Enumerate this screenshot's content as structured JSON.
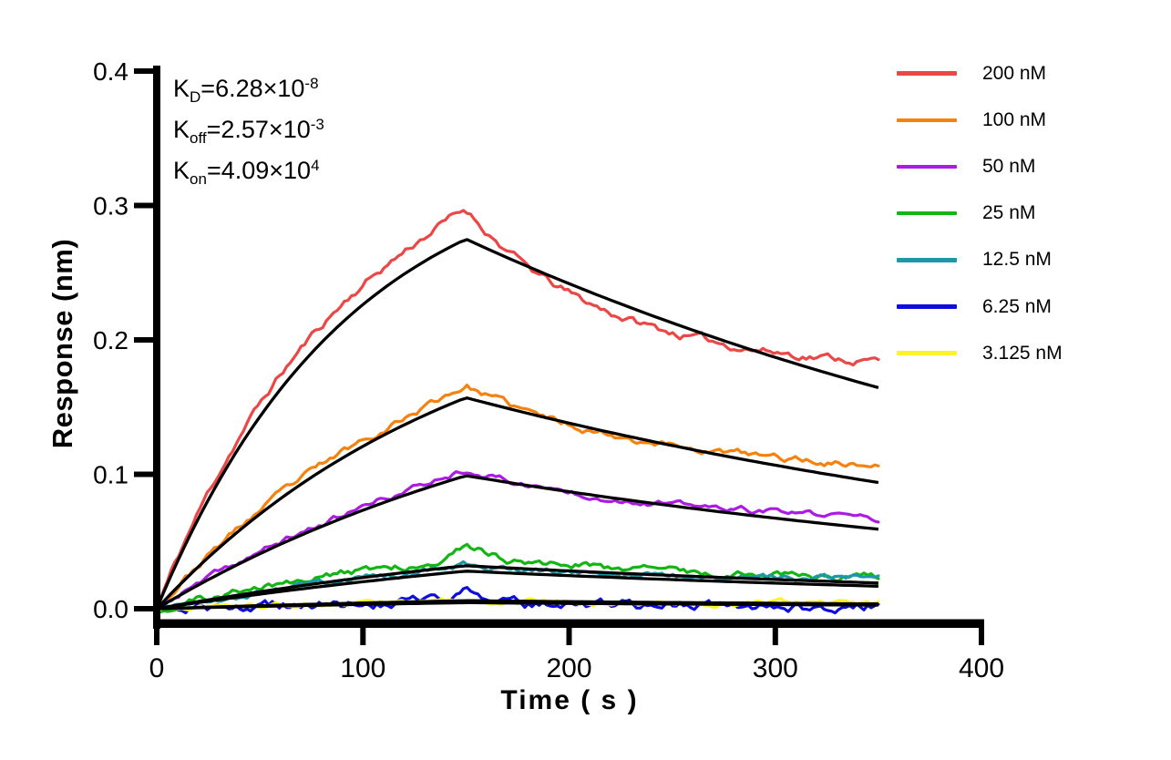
{
  "chart_data": {
    "type": "line",
    "title": "",
    "xlabel": "Time ( s )",
    "ylabel": "Response (nm)",
    "xlim": [
      0,
      400
    ],
    "ylim": [
      0,
      0.4
    ],
    "grid": false,
    "legend_position": "right-outside",
    "x_ticks": {
      "values": [
        0,
        100,
        200,
        300,
        400
      ],
      "labels": [
        "0",
        "100",
        "200",
        "300",
        "400"
      ]
    },
    "y_ticks": {
      "values": [
        0,
        0.1,
        0.2,
        0.3,
        0.4
      ],
      "labels": [
        "0.0",
        "0.1",
        "0.2",
        "0.3",
        "0.4"
      ]
    },
    "model": {
      "description": "1:1 binding kinetics; association 0-150 s, dissociation 150-350 s",
      "association_end_s": 150,
      "trace_end_s": 350,
      "koff_fit": 0.00257,
      "fit_color": "#000000"
    },
    "series": [
      {
        "label": "200 nM",
        "conc_nM": 200,
        "color": "#EB4746",
        "kobs": 0.01075,
        "fit_peak": 0.275,
        "data_peak": 0.293,
        "data_end": 0.177,
        "k_dis_data": 0.014,
        "noise_sd": 0.0021,
        "spike_amp": 0.004,
        "spike_width": 16,
        "seed": 11
      },
      {
        "label": "100 nM",
        "conc_nM": 100,
        "color": "#F6820D",
        "kobs": 0.00666,
        "fit_peak": 0.157,
        "data_peak": 0.163,
        "data_end": 0.098,
        "k_dis_data": 0.01,
        "noise_sd": 0.0018,
        "spike_amp": 0.003,
        "spike_width": 13,
        "seed": 23
      },
      {
        "label": "50 nM",
        "conc_nM": 50,
        "color": "#AC1BE3",
        "kobs": 0.00462,
        "fit_peak": 0.099,
        "data_peak": 0.102,
        "data_end": 0.061,
        "k_dis_data": 0.009,
        "noise_sd": 0.0016,
        "spike_amp": 0.002,
        "spike_width": 12,
        "seed": 37
      },
      {
        "label": "25 nM",
        "conc_nM": 25,
        "color": "#12B512",
        "kobs": 0.00359,
        "fit_peak": 0.032,
        "data_peak": 0.039,
        "data_end": 0.018,
        "k_dis_data": 0.007,
        "noise_sd": 0.002,
        "spike_amp": 0.006,
        "spike_width": 9,
        "seed": 51
      },
      {
        "label": "12.5 nM",
        "conc_nM": 12.5,
        "color": "#1E97A9",
        "kobs": 0.00308,
        "fit_peak": 0.028,
        "data_peak": 0.031,
        "data_end": 0.018,
        "k_dis_data": 0.006,
        "noise_sd": 0.0016,
        "spike_amp": 0.002,
        "spike_width": 10,
        "seed": 67
      },
      {
        "label": "6.25 nM",
        "conc_nM": 6.25,
        "color": "#0E0EDC",
        "kobs": 0.00283,
        "fit_peak": 0.006,
        "data_peak": 0.0045,
        "data_end": 0.001,
        "k_dis_data": 0.01,
        "noise_sd": 0.0026,
        "spike_amp": 0.008,
        "spike_width": 8,
        "seed": 83
      },
      {
        "label": "3.125 nM",
        "conc_nM": 3.125,
        "color": "#FFF22B",
        "kobs": 0.0027,
        "fit_peak": 0.0045,
        "data_peak": 0.0055,
        "data_end": 0.0035,
        "k_dis_data": 0.008,
        "noise_sd": 0.0013,
        "spike_amp": 0.0,
        "spike_width": 10,
        "seed": 97
      }
    ]
  },
  "annotations": {
    "kd": {
      "base": "K",
      "sub": "D",
      "eq": "=6.28×10",
      "exp": "-8"
    },
    "koff": {
      "base": "K",
      "sub": "off",
      "eq": "=2.57×10",
      "exp": "-3"
    },
    "kon": {
      "base": "K",
      "sub": "on",
      "eq": "=4.09×10",
      "exp": "4"
    }
  }
}
